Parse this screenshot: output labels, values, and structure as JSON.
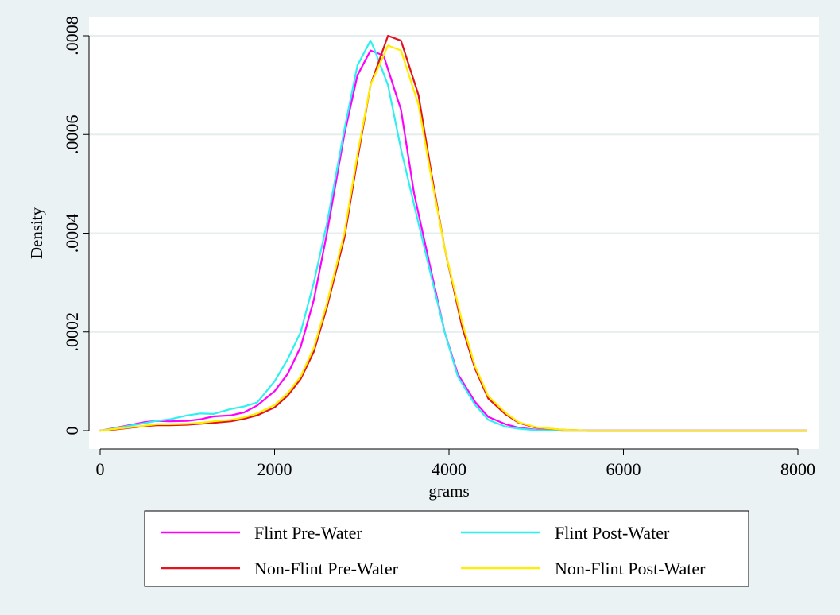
{
  "chart_data": {
    "type": "line",
    "title": "",
    "xlabel": "grams",
    "ylabel": "Density",
    "xlim": [
      0,
      8200
    ],
    "ylim": [
      0,
      0.00081
    ],
    "xticks": [
      0,
      2000,
      4000,
      6000,
      8000
    ],
    "xtick_labels": [
      "0",
      "2000",
      "4000",
      "6000",
      "8000"
    ],
    "yticks": [
      0,
      0.0002,
      0.0004,
      0.0006,
      0.0008
    ],
    "ytick_labels": [
      "0",
      ".0002",
      ".0004",
      ".0006",
      ".0008"
    ],
    "grid": true,
    "legend_position": "bottom",
    "series": [
      {
        "name": "Flint Pre-Water",
        "color": "#ff00ff",
        "x": [
          0,
          150,
          300,
          500,
          650,
          800,
          1000,
          1150,
          1300,
          1500,
          1650,
          1800,
          2000,
          2150,
          2300,
          2450,
          2600,
          2800,
          2950,
          3100,
          3250,
          3450,
          3600,
          3800,
          3950,
          4100,
          4300,
          4450,
          4650,
          4800,
          5000,
          5300,
          5600,
          6000,
          7000,
          8100
        ],
        "y": [
          0.0,
          5e-06,
          1e-05,
          1.7e-05,
          2e-05,
          1.9e-05,
          2e-05,
          2.3e-05,
          2.9e-05,
          3.1e-05,
          3.7e-05,
          5.1e-05,
          8e-05,
          0.000115,
          0.00017,
          0.000265,
          0.0004,
          0.0006,
          0.00072,
          0.00077,
          0.00076,
          0.00065,
          0.00048,
          0.00032,
          0.0002,
          0.000115,
          5.8e-05,
          2.8e-05,
          1.3e-05,
          6e-06,
          2e-06,
          0.0,
          0.0,
          0.0,
          0.0,
          0.0
        ]
      },
      {
        "name": "Flint Post-Water",
        "color": "#2ef0f0",
        "x": [
          0,
          150,
          300,
          500,
          650,
          800,
          1000,
          1150,
          1300,
          1500,
          1650,
          1800,
          2000,
          2150,
          2300,
          2450,
          2600,
          2800,
          2950,
          3100,
          3150,
          3300,
          3450,
          3650,
          3800,
          3950,
          4100,
          4300,
          4450,
          4650,
          4800,
          5000,
          5300,
          5600,
          6000,
          7000,
          8100
        ],
        "y": [
          0.0,
          4e-06,
          9e-06,
          1.5e-05,
          2e-05,
          2.3e-05,
          3.1e-05,
          3.5e-05,
          3.4e-05,
          4.4e-05,
          4.9e-05,
          5.7e-05,
          0.0001,
          0.000145,
          0.0002,
          0.0003,
          0.00042,
          0.00061,
          0.00074,
          0.00079,
          0.00077,
          0.0007,
          0.00057,
          0.00042,
          0.00031,
          0.0002,
          0.00011,
          5.2e-05,
          2.2e-05,
          8e-06,
          4e-06,
          1e-06,
          0.0,
          0.0,
          0.0,
          0.0,
          0.0
        ]
      },
      {
        "name": "Non-Flint Pre-Water",
        "color": "#e0141e",
        "x": [
          0,
          150,
          300,
          500,
          650,
          800,
          1000,
          1150,
          1300,
          1500,
          1650,
          1800,
          2000,
          2150,
          2300,
          2450,
          2600,
          2800,
          2950,
          3100,
          3300,
          3450,
          3650,
          3800,
          3950,
          4150,
          4300,
          4450,
          4650,
          4800,
          5000,
          5300,
          5600,
          6000,
          7000,
          8100
        ],
        "y": [
          0.0,
          2e-06,
          5e-06,
          9e-06,
          1.1e-05,
          1.1e-05,
          1.2e-05,
          1.4e-05,
          1.6e-05,
          1.9e-05,
          2.4e-05,
          3.1e-05,
          4.7e-05,
          7.1e-05,
          0.000105,
          0.00016,
          0.00025,
          0.00039,
          0.00055,
          0.0007,
          0.0008,
          0.00079,
          0.00068,
          0.00052,
          0.00037,
          0.00021,
          0.000125,
          6.5e-05,
          3.3e-05,
          1.6e-05,
          6e-06,
          2e-06,
          0.0,
          0.0,
          0.0,
          0.0
        ]
      },
      {
        "name": "Non-Flint Post-Water",
        "color": "#ffee00",
        "x": [
          0,
          150,
          300,
          500,
          650,
          800,
          1000,
          1150,
          1300,
          1500,
          1650,
          1800,
          2000,
          2150,
          2300,
          2450,
          2600,
          2800,
          2950,
          3100,
          3300,
          3450,
          3650,
          3800,
          3950,
          4150,
          4300,
          4450,
          4650,
          4800,
          5000,
          5300,
          5600,
          6000,
          7000,
          8100
        ],
        "y": [
          0.0,
          3e-06,
          6e-06,
          1e-05,
          1.3e-05,
          1.3e-05,
          1.4e-05,
          1.6e-05,
          1.9e-05,
          2.2e-05,
          2.7e-05,
          3.5e-05,
          5.2e-05,
          7.6e-05,
          0.00011,
          0.000168,
          0.000258,
          0.0004,
          0.00056,
          0.0007,
          0.00078,
          0.00077,
          0.00066,
          0.00051,
          0.00037,
          0.00022,
          0.00013,
          7e-05,
          3.6e-05,
          1.7e-05,
          7e-06,
          2e-06,
          0.0,
          0.0,
          0.0,
          0.0
        ]
      }
    ]
  }
}
